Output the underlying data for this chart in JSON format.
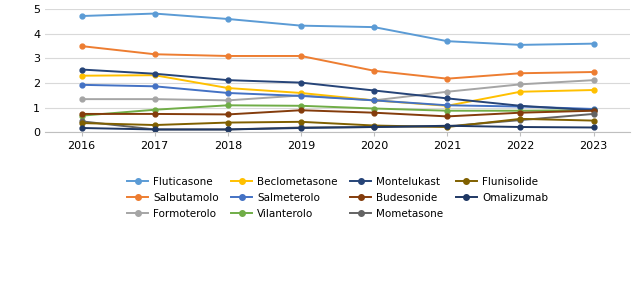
{
  "years": [
    2016,
    2017,
    2018,
    2019,
    2020,
    2021,
    2022,
    2023
  ],
  "series": {
    "Fluticasone": [
      4.72,
      4.82,
      4.6,
      4.33,
      4.27,
      3.7,
      3.55,
      3.6
    ],
    "Salbutamolo": [
      3.5,
      3.17,
      3.1,
      3.1,
      2.5,
      2.18,
      2.4,
      2.45
    ],
    "Formoterolo": [
      1.35,
      1.35,
      1.3,
      1.5,
      1.3,
      1.65,
      1.95,
      2.12
    ],
    "Beclometasone": [
      2.3,
      2.32,
      1.8,
      1.6,
      1.3,
      1.08,
      1.65,
      1.72
    ],
    "Salmeterolo": [
      1.93,
      1.87,
      1.6,
      1.48,
      1.3,
      1.1,
      1.05,
      0.95
    ],
    "Vilanterolo": [
      0.68,
      0.92,
      1.1,
      1.08,
      0.97,
      0.88,
      0.88,
      0.9
    ],
    "Montelukast": [
      2.55,
      2.38,
      2.12,
      2.02,
      1.7,
      1.38,
      1.08,
      0.9
    ],
    "Budesonide": [
      0.75,
      0.75,
      0.73,
      0.9,
      0.8,
      0.65,
      0.8,
      0.88
    ],
    "Mometasone": [
      0.45,
      0.12,
      0.12,
      0.2,
      0.22,
      0.25,
      0.5,
      0.75
    ],
    "Flunisolide": [
      0.38,
      0.3,
      0.4,
      0.43,
      0.28,
      0.22,
      0.55,
      0.48
    ],
    "Omalizumab": [
      0.18,
      0.12,
      0.12,
      0.18,
      0.22,
      0.27,
      0.22,
      0.2
    ]
  },
  "legend_order": [
    "Fluticasone",
    "Salbutamolo",
    "Formoterolo",
    "Beclometasone",
    "Salmeterolo",
    "Vilanterolo",
    "Montelukast",
    "Budesonide",
    "Mometasone",
    "Flunisolide",
    "Omalizumab"
  ],
  "colors": {
    "Fluticasone": "#5B9BD5",
    "Salbutamolo": "#ED7D31",
    "Formoterolo": "#A5A5A5",
    "Beclometasone": "#FFC000",
    "Salmeterolo": "#4472C4",
    "Vilanterolo": "#70AD47",
    "Montelukast": "#264478",
    "Budesonide": "#843C0C",
    "Mometasone": "#636363",
    "Flunisolide": "#806000",
    "Omalizumab": "#1F3864"
  },
  "ylim": [
    0,
    5
  ],
  "yticks": [
    0,
    1,
    2,
    3,
    4,
    5
  ],
  "background_color": "#FFFFFF",
  "grid_color": "#D9D9D9"
}
